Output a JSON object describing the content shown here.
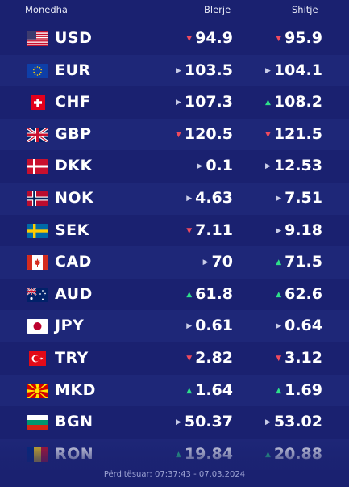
{
  "header": {
    "currency": "Monedha",
    "buy": "Blerje",
    "sell": "Shitje"
  },
  "rows": [
    {
      "code": "USD",
      "flag": "us-flag-icon",
      "buy": "94.9",
      "buy_trend": "down",
      "sell": "95.9",
      "sell_trend": "down"
    },
    {
      "code": "EUR",
      "flag": "eu-flag-icon",
      "buy": "103.5",
      "buy_trend": "same",
      "sell": "104.1",
      "sell_trend": "same"
    },
    {
      "code": "CHF",
      "flag": "ch-flag-icon",
      "buy": "107.3",
      "buy_trend": "same",
      "sell": "108.2",
      "sell_trend": "up"
    },
    {
      "code": "GBP",
      "flag": "gb-flag-icon",
      "buy": "120.5",
      "buy_trend": "down",
      "sell": "121.5",
      "sell_trend": "down"
    },
    {
      "code": "DKK",
      "flag": "dk-flag-icon",
      "buy": "0.1",
      "buy_trend": "same",
      "sell": "12.53",
      "sell_trend": "same"
    },
    {
      "code": "NOK",
      "flag": "no-flag-icon",
      "buy": "4.63",
      "buy_trend": "same",
      "sell": "7.51",
      "sell_trend": "same"
    },
    {
      "code": "SEK",
      "flag": "se-flag-icon",
      "buy": "7.11",
      "buy_trend": "down",
      "sell": "9.18",
      "sell_trend": "same"
    },
    {
      "code": "CAD",
      "flag": "ca-flag-icon",
      "buy": "70",
      "buy_trend": "same",
      "sell": "71.5",
      "sell_trend": "up"
    },
    {
      "code": "AUD",
      "flag": "au-flag-icon",
      "buy": "61.8",
      "buy_trend": "up",
      "sell": "62.6",
      "sell_trend": "up"
    },
    {
      "code": "JPY",
      "flag": "jp-flag-icon",
      "buy": "0.61",
      "buy_trend": "same",
      "sell": "0.64",
      "sell_trend": "same"
    },
    {
      "code": "TRY",
      "flag": "tr-flag-icon",
      "buy": "2.82",
      "buy_trend": "down",
      "sell": "3.12",
      "sell_trend": "down"
    },
    {
      "code": "MKD",
      "flag": "mk-flag-icon",
      "buy": "1.64",
      "buy_trend": "up",
      "sell": "1.69",
      "sell_trend": "up"
    },
    {
      "code": "BGN",
      "flag": "bg-flag-icon",
      "buy": "50.37",
      "buy_trend": "same",
      "sell": "53.02",
      "sell_trend": "same"
    },
    {
      "code": "RON",
      "flag": "ro-flag-icon",
      "buy": "19.84",
      "buy_trend": "up",
      "sell": "20.88",
      "sell_trend": "up"
    }
  ],
  "footer": {
    "updated": "Përditësuar: 07:37:43 - 07.03.2024"
  },
  "colors": {
    "background": "#1a2170",
    "down": "#f04a5e",
    "up": "#2ee08a",
    "same": "#c9cde8"
  }
}
